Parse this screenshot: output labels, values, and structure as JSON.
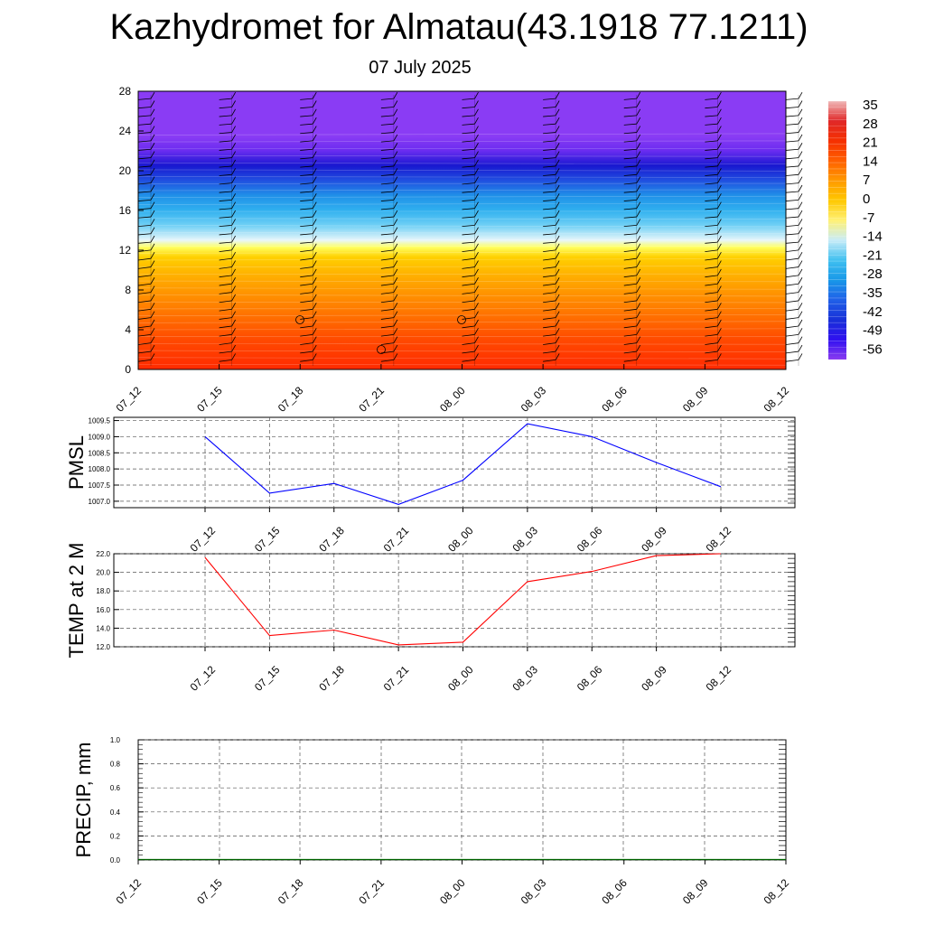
{
  "title": "Kazhydromet for Almatau(43.1918 77.1211)",
  "subtitle": "07 July 2025",
  "time_labels": [
    "07_12",
    "07_15",
    "07_18",
    "07_21",
    "08_00",
    "08_03",
    "08_06",
    "08_09",
    "08_12"
  ],
  "chart_data": [
    {
      "type": "heatmap",
      "name": "cross-section",
      "x_labels": [
        "07_12",
        "07_15",
        "07_18",
        "07_21",
        "08_00",
        "08_03",
        "08_06",
        "08_09",
        "08_12"
      ],
      "y_ticks": [
        0,
        4,
        8,
        12,
        16,
        20,
        24,
        28
      ],
      "ylim": [
        0,
        28
      ],
      "colorbar_labels": [
        "35",
        "28",
        "21",
        "14",
        "7",
        "0",
        "-7",
        "-14",
        "-21",
        "-28",
        "-35",
        "-42",
        "-49",
        "-56"
      ],
      "colorbar_colors": [
        "#f0b8b8",
        "#e02828",
        "#f53000",
        "#ff6000",
        "#ff9a00",
        "#ffc800",
        "#fff176",
        "#c8ecf8",
        "#40c0f0",
        "#1898e8",
        "#2060e8",
        "#1830d8",
        "#3010f0",
        "#8a3cf0"
      ],
      "layer_colors": [
        {
          "y": 0,
          "color": "#ff2a00"
        },
        {
          "y": 3,
          "color": "#ff4a00"
        },
        {
          "y": 6,
          "color": "#ff7a00"
        },
        {
          "y": 9,
          "color": "#ffa800"
        },
        {
          "y": 11.3,
          "color": "#ffd000"
        },
        {
          "y": 12.3,
          "color": "#ffff60"
        },
        {
          "y": 13,
          "color": "#e8f6fa"
        },
        {
          "y": 14.5,
          "color": "#70d0f5"
        },
        {
          "y": 16,
          "color": "#30b0ef"
        },
        {
          "y": 17.5,
          "color": "#2090e8"
        },
        {
          "y": 19,
          "color": "#2050e0"
        },
        {
          "y": 20.5,
          "color": "#1818d0"
        },
        {
          "y": 22,
          "color": "#6a2cf0"
        },
        {
          "y": 23.5,
          "color": "#8a3cf4"
        },
        {
          "y": 28,
          "color": "#8a3cf4"
        }
      ],
      "colors": {
        "border": "#000000",
        "barb": "#000000"
      }
    },
    {
      "type": "line",
      "ylabel": "PMSL",
      "x": [
        "07_12",
        "07_15",
        "07_18",
        "07_21",
        "08_00",
        "08_03",
        "08_06",
        "08_09",
        "08_12"
      ],
      "y": [
        1009.0,
        1007.25,
        1007.55,
        1006.9,
        1007.65,
        1009.4,
        1009.0,
        1008.2,
        1007.45
      ],
      "ylim": [
        1006.8,
        1009.6
      ],
      "y_ticks": [
        "1007.0",
        "1007.5",
        "1008.0",
        "1008.5",
        "1009.0",
        "1009.5"
      ],
      "y_tick_values": [
        1007.0,
        1007.5,
        1008.0,
        1008.5,
        1009.0,
        1009.5
      ],
      "grid": true,
      "color": "#0000ff"
    },
    {
      "type": "line",
      "ylabel": "TEMP at 2 M",
      "x": [
        "07_12",
        "07_15",
        "07_18",
        "07_21",
        "08_00",
        "08_03",
        "08_06",
        "08_09",
        "08_12"
      ],
      "y": [
        21.6,
        13.2,
        13.8,
        12.2,
        12.5,
        19.0,
        20.1,
        21.8,
        22.0
      ],
      "ylim": [
        12.0,
        22.0
      ],
      "y_ticks": [
        "12.0",
        "14.0",
        "16.0",
        "18.0",
        "20.0",
        "22.0"
      ],
      "y_tick_values": [
        12.0,
        14.0,
        16.0,
        18.0,
        20.0,
        22.0
      ],
      "grid": true,
      "color": "#ff0000"
    },
    {
      "type": "bar",
      "ylabel": "PRECIP, mm",
      "x": [
        "07_12",
        "07_15",
        "07_18",
        "07_21",
        "08_00",
        "08_03",
        "08_06",
        "08_09",
        "08_12"
      ],
      "values": [
        0,
        0,
        0,
        0,
        0,
        0,
        0,
        0,
        0
      ],
      "ylim": [
        0.0,
        1.0
      ],
      "y_ticks": [
        "0.0",
        "0.2",
        "0.4",
        "0.6",
        "0.8",
        "1.0"
      ],
      "y_tick_values": [
        0.0,
        0.2,
        0.4,
        0.6,
        0.8,
        1.0
      ],
      "grid": true,
      "color": "#006400"
    }
  ]
}
